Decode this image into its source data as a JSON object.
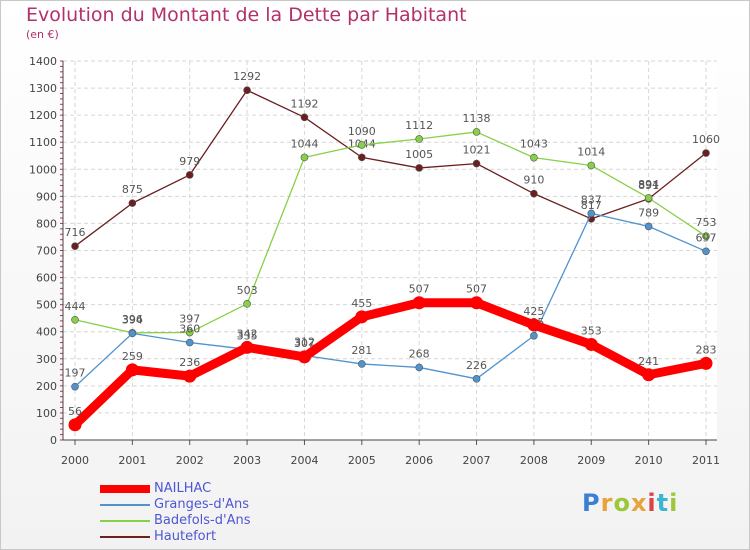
{
  "title": "Evolution du Montant de la Dette par Habitant",
  "unit": "(en €)",
  "logo": {
    "text": "Proxiti",
    "letters": [
      "P",
      "r",
      "o",
      "x",
      "i",
      "t",
      "i"
    ],
    "colors": [
      "#3b7fd4",
      "#e8a33a",
      "#9bc83a",
      "#e8a33a",
      "#d94545",
      "#3bb5d4",
      "#9bc83a"
    ]
  },
  "chart_data": {
    "type": "line",
    "categories": [
      "2000",
      "2001",
      "2002",
      "2003",
      "2004",
      "2005",
      "2006",
      "2007",
      "2008",
      "2009",
      "2010",
      "2011"
    ],
    "ylim": [
      0,
      1400
    ],
    "yticks": [
      0,
      100,
      200,
      300,
      400,
      500,
      600,
      700,
      800,
      900,
      1000,
      1100,
      1200,
      1300,
      1400
    ],
    "grid": true,
    "legend_position": "bottom-left",
    "series": [
      {
        "name": "NAILHAC",
        "color": "#ff0000",
        "values": [
          56,
          259,
          236,
          342,
          307,
          455,
          507,
          507,
          425,
          353,
          241,
          283
        ]
      },
      {
        "name": "Granges-d'Ans",
        "color": "#4f93cf",
        "values": [
          197,
          394,
          360,
          335,
          312,
          281,
          268,
          226,
          385,
          837,
          789,
          697
        ]
      },
      {
        "name": "Badefols-d'Ans",
        "color": "#86d147",
        "values": [
          444,
          396,
          397,
          503,
          1044,
          1090,
          1112,
          1138,
          1043,
          1014,
          894,
          753
        ]
      },
      {
        "name": "Hautefort",
        "color": "#6b1f1f",
        "values": [
          716,
          875,
          979,
          1292,
          1192,
          1044,
          1005,
          1021,
          910,
          817,
          891,
          1060
        ]
      }
    ]
  }
}
